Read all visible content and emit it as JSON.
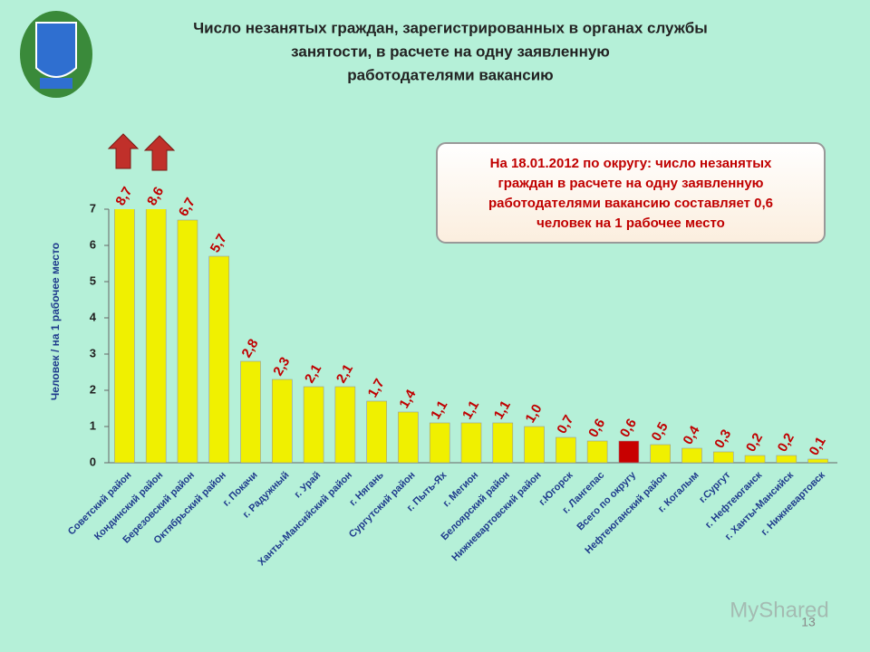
{
  "chart_data": {
    "type": "bar",
    "title": [
      "Число незанятых граждан, зарегистрированных в органах службы",
      "занятости, в расчете на одну заявленную",
      "работодателями вакансию"
    ],
    "y_label": "Человек / на 1 рабочее место",
    "annotation": [
      "На 18.01.2012 по округу: число незанятых",
      "граждан в расчете на одну заявленную",
      "работодателями вакансию составляет 0,6",
      "человек на 1 рабочее место"
    ],
    "page_number": "13",
    "watermark": "MyShared",
    "categories": [
      "Советский район",
      "Кондинский район",
      "Березовский район",
      "Октябрьский район",
      "г. Покачи",
      "г. Радужный",
      "г. Урай",
      "Ханты-Мансийский район",
      "г. Нягань",
      "Сургутский район",
      "г. Пыть-Ях",
      "г. Мегион",
      "Белоярский район",
      "Нижневартовский район",
      "г.Югорск",
      "г. Лангепас",
      "Всего по округу",
      "Нефтеюганский район",
      "г. Когалым",
      "г.Сургут",
      "г. Нефтеюганск",
      "г. Ханты-Мансийск",
      "г. Нижневартовск"
    ],
    "values": [
      8.7,
      8.6,
      6.7,
      5.7,
      2.8,
      2.3,
      2.1,
      2.1,
      1.7,
      1.4,
      1.1,
      1.1,
      1.1,
      1.0,
      0.7,
      0.6,
      0.6,
      0.5,
      0.4,
      0.3,
      0.2,
      0.2,
      0.1
    ],
    "value_labels": [
      "8,7",
      "8,6",
      "6,7",
      "5,7",
      "2,8",
      "2,3",
      "2,1",
      "2,1",
      "1,7",
      "1,4",
      "1,1",
      "1,1",
      "1,1",
      "1,0",
      "0,7",
      "0,6",
      "0,6",
      "0,5",
      "0,4",
      "0,3",
      "0,2",
      "0,2",
      "0,1"
    ],
    "colors": [
      "#f0f000",
      "#f0f000",
      "#f0f000",
      "#f0f000",
      "#f0f000",
      "#f0f000",
      "#f0f000",
      "#f0f000",
      "#f0f000",
      "#f0f000",
      "#f0f000",
      "#f0f000",
      "#f0f000",
      "#f0f000",
      "#f0f000",
      "#f0f000",
      "#c80000",
      "#f0f000",
      "#f0f000",
      "#f0f000",
      "#f0f000",
      "#f0f000",
      "#f0f000"
    ],
    "ylim": [
      0,
      7
    ],
    "yticks": [
      0,
      1,
      2,
      3,
      4,
      5,
      6,
      7
    ]
  }
}
